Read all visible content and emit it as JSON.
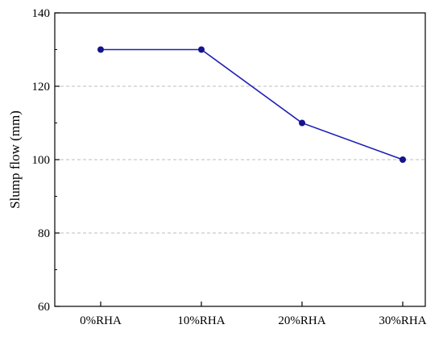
{
  "chart_data": {
    "type": "line",
    "title": "",
    "xlabel": "",
    "ylabel": "Slump flow (mm)",
    "categories": [
      "0%RHA",
      "10%RHA",
      "20%RHA",
      "30%RHA"
    ],
    "series": [
      {
        "values": [
          130,
          130,
          110,
          100
        ]
      }
    ],
    "ylim": [
      60,
      140
    ],
    "yticks": [
      60,
      80,
      100,
      120,
      140
    ],
    "grid": {
      "y": true,
      "x": false,
      "style": "dashed"
    },
    "line_color": "#1f1fb4",
    "marker_color": "#14148c",
    "grid_color": "#bdbdbd"
  }
}
